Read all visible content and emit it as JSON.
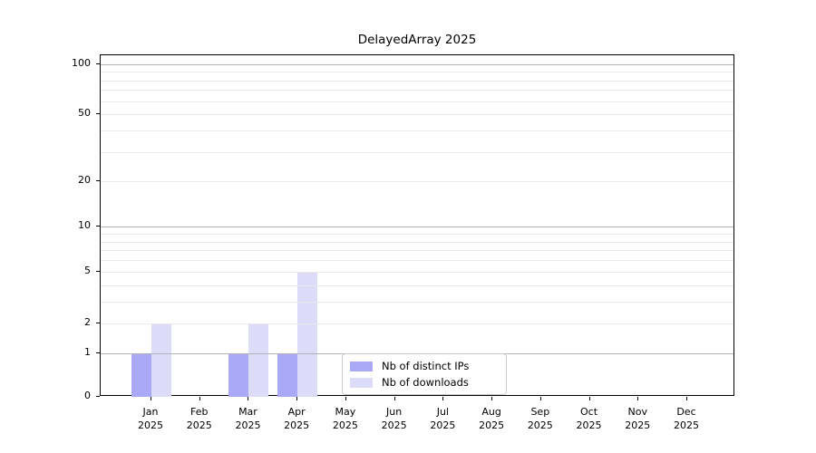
{
  "chart_data": {
    "type": "bar",
    "title": "DelayedArray 2025",
    "xlabel": "",
    "ylabel": "",
    "categories": [
      "Jan",
      "Feb",
      "Mar",
      "Apr",
      "May",
      "Jun",
      "Jul",
      "Aug",
      "Sep",
      "Oct",
      "Nov",
      "Dec"
    ],
    "x_tick_year_line": "2025",
    "series": [
      {
        "name": "Nb of distinct IPs",
        "color": "#a9a9f7",
        "values": [
          1,
          0,
          1,
          1,
          0,
          0,
          0,
          0,
          0,
          0,
          0,
          0
        ]
      },
      {
        "name": "Nb of downloads",
        "color": "#dcdcf9",
        "values": [
          2,
          0,
          2,
          5,
          0,
          0,
          0,
          0,
          0,
          0,
          0,
          0
        ]
      }
    ],
    "y_scale": "log1p",
    "ylim": [
      0,
      113
    ],
    "y_ticks": [
      0,
      1,
      2,
      5,
      10,
      20,
      50,
      100
    ],
    "grid": {
      "on": true,
      "major_at": [
        1,
        10,
        100
      ],
      "minor_at": [
        2,
        3,
        4,
        5,
        6,
        7,
        8,
        9,
        20,
        30,
        40,
        50,
        60,
        70,
        80,
        90
      ],
      "major_color": "#b3b3b3",
      "minor_color": "#e9e9e9",
      "grid_above_bars": true
    },
    "legend": {
      "position": "inside-bottom-center"
    },
    "colors": {
      "spine": "#000000",
      "text": "#000000",
      "background": "#ffffff"
    }
  }
}
